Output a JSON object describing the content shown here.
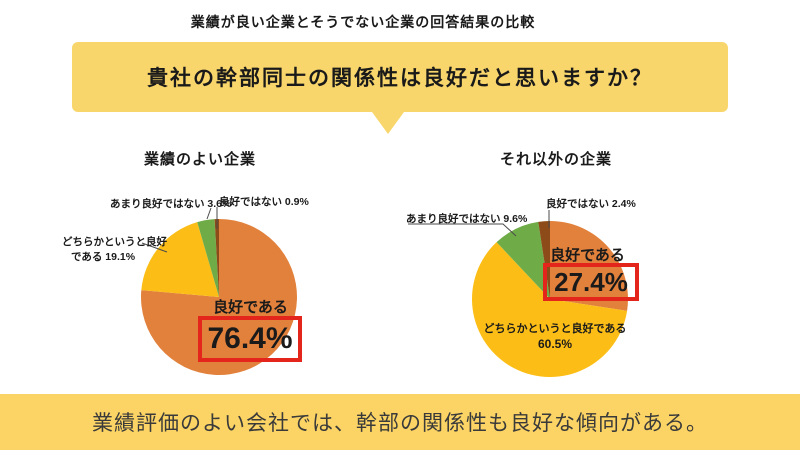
{
  "header": {
    "top_title": "業績が良い企業とそうでない企業の回答結果の比較",
    "question": "貴社の幹部同士の関係性は良好だと思いますか？"
  },
  "footer": {
    "conclusion": "業績評価のよい会社では、幹部の関係性も良好な傾向がある。"
  },
  "colors": {
    "banner": "#F8D66B",
    "footer_banner": "#FBD465",
    "orange": "#E2813C",
    "yellow": "#FCBE16",
    "green": "#6FAC48",
    "brown": "#8E4B1A",
    "highlight_red": "#E3251C"
  },
  "chart_data": [
    {
      "type": "pie",
      "title": "業績のよい企業",
      "start_angle_deg": -90,
      "direction": "clockwise",
      "slices": [
        {
          "label": "良好である",
          "value": 76.4,
          "color": "orange",
          "highlighted": true
        },
        {
          "label": "どちらかというと良好である",
          "value": 19.1,
          "color": "yellow"
        },
        {
          "label": "あまり良好ではない",
          "value": 3.6,
          "color": "green"
        },
        {
          "label": "良好ではない",
          "value": 0.9,
          "color": "brown"
        }
      ],
      "annotations": {
        "callout_green": "あまり良好ではない 3.6%",
        "callout_brown": "良好ではない 0.9%",
        "callout_yellow_line1": "どちらかというと良好",
        "callout_yellow_line2": "である 19.1%",
        "highlight_label": "良好である",
        "highlight_value": "76.4%"
      }
    },
    {
      "type": "pie",
      "title": "それ以外の企業",
      "start_angle_deg": -90,
      "direction": "clockwise",
      "slices": [
        {
          "label": "良好である",
          "value": 27.4,
          "color": "orange",
          "highlighted": true
        },
        {
          "label": "どちらかというと良好である",
          "value": 60.5,
          "color": "yellow"
        },
        {
          "label": "あまり良好ではない",
          "value": 9.6,
          "color": "green"
        },
        {
          "label": "良好ではない",
          "value": 2.4,
          "color": "brown"
        }
      ],
      "annotations": {
        "callout_green": "あまり良好ではない 9.6%",
        "callout_brown": "良好ではない 2.4%",
        "highlight_label": "良好である",
        "highlight_value": "27.4%",
        "inside_yellow_line1": "どちらかというと良好である",
        "inside_yellow_line2": "60.5%"
      }
    }
  ]
}
